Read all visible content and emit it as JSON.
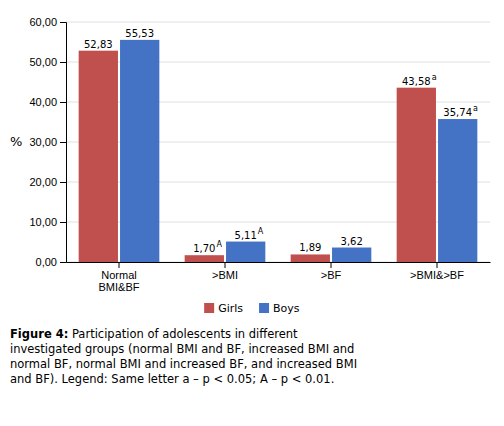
{
  "chart_data": {
    "type": "bar",
    "ylabel": "%",
    "categories": [
      "Normal\nBMI&BF",
      ">BMI",
      ">BF",
      ">BMI&>BF"
    ],
    "series": [
      {
        "name": "Girls",
        "color": "#C0504D",
        "values": [
          52.83,
          1.7,
          1.89,
          43.58
        ],
        "value_labels": [
          "52,83",
          "1,70",
          "1,89",
          "43,58"
        ],
        "superscripts": [
          null,
          "A",
          null,
          "a"
        ]
      },
      {
        "name": "Boys",
        "color": "#4472C4",
        "values": [
          55.53,
          5.11,
          3.62,
          35.74
        ],
        "value_labels": [
          "55,53",
          "5,11",
          "3,62",
          "35,74"
        ],
        "superscripts": [
          null,
          "A",
          null,
          "a"
        ]
      }
    ],
    "ylim": [
      0,
      60
    ],
    "yticks": [
      {
        "value": 0,
        "label": "0,00"
      },
      {
        "value": 10,
        "label": "10,00"
      },
      {
        "value": 20,
        "label": "20,00"
      },
      {
        "value": 30,
        "label": "30,00"
      },
      {
        "value": 40,
        "label": "40,00"
      },
      {
        "value": 50,
        "label": "50,00"
      },
      {
        "value": 60,
        "label": "60,00"
      }
    ],
    "grid": true,
    "data_labels": true,
    "legend": "bottom",
    "caption_bold": "Figure 4:",
    "caption": " Participation of adolescents in different\ninvestigated groups (normal BMI and BF, increased BMI and\nnormal BF, normal BMI and increased BF, and increased BMI\nand BF). Legend: Same letter a – p < 0.05; A – p < 0.01."
  }
}
